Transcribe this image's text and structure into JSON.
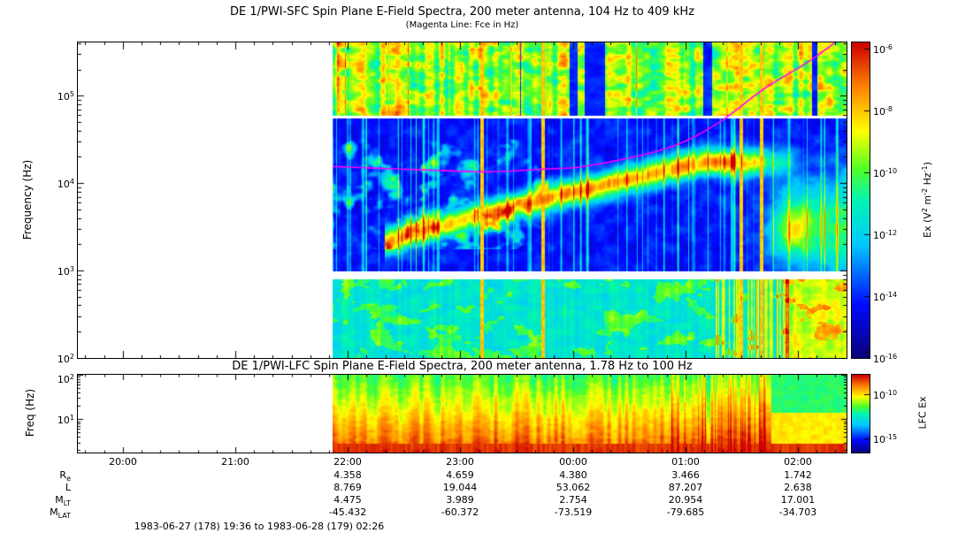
{
  "titles": {
    "main": "DE 1/PWI-SFC  Spin Plane E-Field Spectra, 200 meter antenna, 104 Hz to 409 kHz",
    "subtitle": "(Magenta Line: Fce in Hz)",
    "lfc": "DE 1/PWI-LFC  Spin Plane E-Field Spectra, 200 meter antenna, 1.78 Hz to 100 Hz",
    "footer": "1983-06-27 (178) 19:36 to 1983-06-28 (179) 02:26"
  },
  "misc": {
    "ten": "10"
  },
  "chart_data": {
    "type": "heatmap",
    "description": "Dynamics Explorer 1 plasma wave frequency-time spectrograms: SFC panel (104 Hz to 409 kHz) and LFC panel (1.78 Hz to 100 Hz) electric field spectral density versus time; data begin near 21:52, white area before that is no-data.",
    "time_axis": {
      "start": "1983-06-27 19:36",
      "end": "1983-06-28 02:26",
      "ticks": [
        "20:00",
        "21:00",
        "22:00",
        "23:00",
        "00:00",
        "01:00",
        "02:00"
      ],
      "data_start": "21:52"
    },
    "panels": [
      {
        "id": "SFC",
        "y_label": "Frequency (Hz)",
        "freq_range_hz": [
          100,
          409000
        ],
        "freq_scale": "log",
        "freq_ticks_exp": [
          5,
          4,
          3,
          2
        ],
        "colorbar_ticks_exp": [
          -6,
          -8,
          -10,
          -12,
          -14,
          -16
        ],
        "colorbar_range": [
          "1e-16",
          "1e-6"
        ],
        "colorbar_label": {
          "t1": "Ex (V",
          "s1": "2",
          "t2": " m",
          "s2": "-2",
          "t3": " Hz",
          "s3": "-1",
          "t4": ")"
        },
        "fce_line": {
          "color": "#ff00ff",
          "points": [
            {
              "t": "21:52",
              "hz": 15500
            },
            {
              "t": "22:40",
              "hz": 14200
            },
            {
              "t": "23:14",
              "hz": 13500
            },
            {
              "t": "23:45",
              "hz": 14500
            },
            {
              "t": "00:09",
              "hz": 15900
            },
            {
              "t": "00:50",
              "hz": 25000
            },
            {
              "t": "01:17",
              "hz": 48000
            },
            {
              "t": "01:42",
              "hz": 120000
            },
            {
              "t": "02:05",
              "hz": 240000
            },
            {
              "t": "02:20",
              "hz": 409000
            }
          ]
        },
        "features": [
          "Broadband auroral kilometric radiation (green/yellow) above ~60 kHz for the whole pass",
          "Narrow white instrument gaps near 56 kHz and just below 1 kHz",
          "Upper-hybrid emission band rising from ~2.5 kHz near 23:00 to ~12 kHz after 01:00",
          "Funnel-shaped emission near perigee around 01:50-02:15",
          "Whistler-mode hiss band (cyan) below ~800 Hz, intensifying after 01:15"
        ]
      },
      {
        "id": "LFC",
        "y_label": "Freq (Hz)",
        "freq_range_hz": [
          1.78,
          100
        ],
        "freq_scale": "log",
        "freq_ticks_exp": [
          2,
          1
        ],
        "colorbar_ticks_exp": [
          -10,
          -15
        ],
        "colorbar_label": "LFC Ex",
        "features": [
          "Intense broadband ELF noise, strongest (red) below ~6 Hz",
          "Saturated red burst near 01:20-01:40",
          "Weaker green levels above ~30 Hz after 01:50"
        ]
      }
    ],
    "ephemeris": {
      "row_labels": [
        {
          "base": "R",
          "sub": "e"
        },
        {
          "base": "L",
          "sub": ""
        },
        {
          "base": "M",
          "sub": "LT"
        },
        {
          "base": "M",
          "sub": "LAT"
        }
      ],
      "columns": [
        "22:00",
        "23:00",
        "00:00",
        "01:00",
        "02:00"
      ],
      "values": [
        [
          "4.358",
          "4.659",
          "4.380",
          "3.466",
          "1.742"
        ],
        [
          "8.769",
          "19.044",
          "53.062",
          "87.207",
          "2.638"
        ],
        [
          "4.475",
          "3.989",
          "2.754",
          "20.954",
          "17.001"
        ],
        [
          "-45.432",
          "-60.372",
          "-73.519",
          "-79.685",
          "-34.703"
        ]
      ]
    }
  }
}
